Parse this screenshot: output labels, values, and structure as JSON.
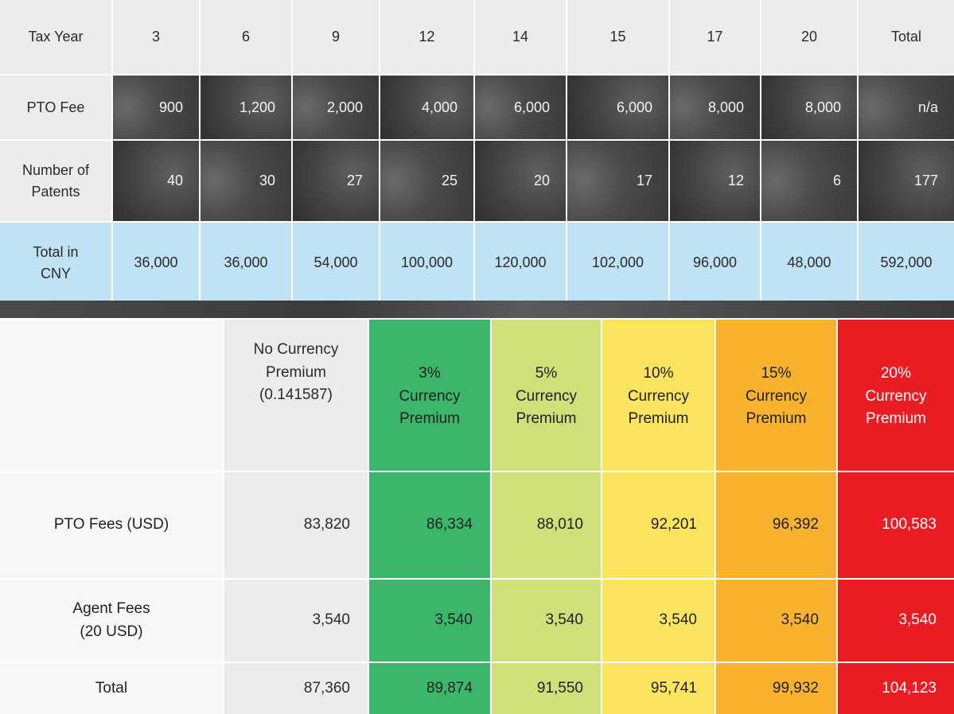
{
  "top_table": {
    "header": [
      "Tax Year",
      "3",
      "6",
      "9",
      "12",
      "14",
      "15",
      "17",
      "20",
      "Total"
    ],
    "rows": [
      {
        "label": "PTO Fee",
        "values": [
          "900",
          "1,200",
          "2,000",
          "4,000",
          "6,000",
          "6,000",
          "8,000",
          "8,000",
          "n/a"
        ]
      },
      {
        "label": "Number of Patents",
        "values": [
          "40",
          "30",
          "27",
          "25",
          "20",
          "17",
          "12",
          "6",
          "177"
        ]
      },
      {
        "label": "Total in CNY",
        "values": [
          "36,000",
          "36,000",
          "54,000",
          "100,000",
          "120,000",
          "102,000",
          "96,000",
          "48,000",
          "592,000"
        ]
      }
    ]
  },
  "bottom_table": {
    "header": [
      "No Currency Premium (0.141587)",
      "3% Currency Premium",
      "5% Currency Premium",
      "10% Currency Premium",
      "15% Currency Premium",
      "20% Currency Premium"
    ],
    "rows": [
      {
        "label": "PTO Fees (USD)",
        "values": [
          "83,820",
          "86,334",
          "88,010",
          "92,201",
          "96,392",
          "100,583"
        ]
      },
      {
        "label": "Agent Fees (20 USD)",
        "values": [
          "3,540",
          "3,540",
          "3,540",
          "3,540",
          "3,540",
          "3,540"
        ]
      },
      {
        "label": "Total",
        "values": [
          "87,360",
          "89,874",
          "91,550",
          "95,741",
          "99,932",
          "104,123"
        ]
      }
    ]
  },
  "colors": {
    "header_gray": "#ececec",
    "dark_cell": "#404040",
    "cny_blue": "#bfe2f5",
    "premium_0": "#ececec",
    "premium_3": "#3bb66b",
    "premium_5": "#cde07a",
    "premium_10": "#fce45e",
    "premium_15": "#f8b22d",
    "premium_20": "#eb1c24"
  }
}
